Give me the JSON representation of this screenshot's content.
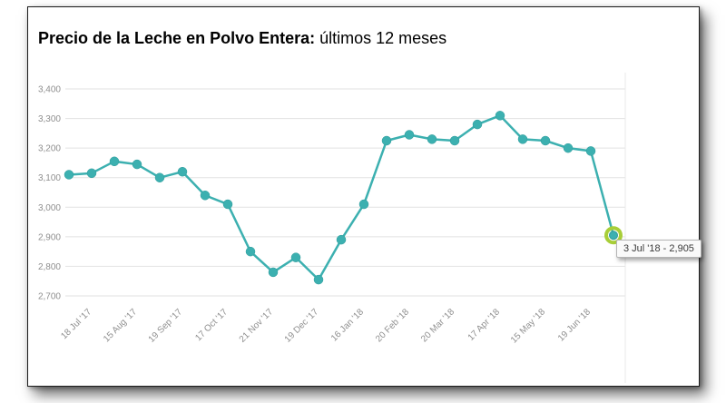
{
  "title": {
    "bold": "Precio de la Leche en Polvo Entera:",
    "regular": " últimos 12 meses"
  },
  "tooltip": {
    "label": "3 Jul '18  -  2,905"
  },
  "chart_data": {
    "type": "line",
    "title": "Precio de la Leche en Polvo Entera: últimos 12 meses",
    "xlabel": "",
    "ylabel": "",
    "grid": true,
    "legend": false,
    "series_color": "#3cb0b0",
    "marker_stroke": "#2f9b9b",
    "highlight_color": "#a8ce38",
    "grid_color": "#e2e2e2",
    "axis_label_color": "#8f8f8f",
    "ylim": [
      2700,
      3400
    ],
    "y_tick_step": 100,
    "y_ticks": [
      "2,700",
      "2,800",
      "2,900",
      "3,000",
      "3,100",
      "3,200",
      "3,300",
      "3,400"
    ],
    "categories": [
      "18 Jul '17",
      "15 Aug '17",
      "19 Sep '17",
      "17 Oct '17",
      "21 Nov '17",
      "19 Dec '17",
      "16 Jan '18",
      "20 Feb '18",
      "20 Mar '18",
      "17 Apr '18",
      "15 May '18",
      "19 Jun '18"
    ],
    "values": [
      3110,
      3115,
      3155,
      3145,
      3100,
      3120,
      3040,
      3010,
      2850,
      2780,
      2830,
      2755,
      2890,
      3010,
      3225,
      3245,
      3230,
      3225,
      3280,
      3310,
      3230,
      3225,
      3200,
      3190,
      2905
    ],
    "last_point": {
      "label": "3 Jul '18",
      "value": "2,905"
    }
  }
}
